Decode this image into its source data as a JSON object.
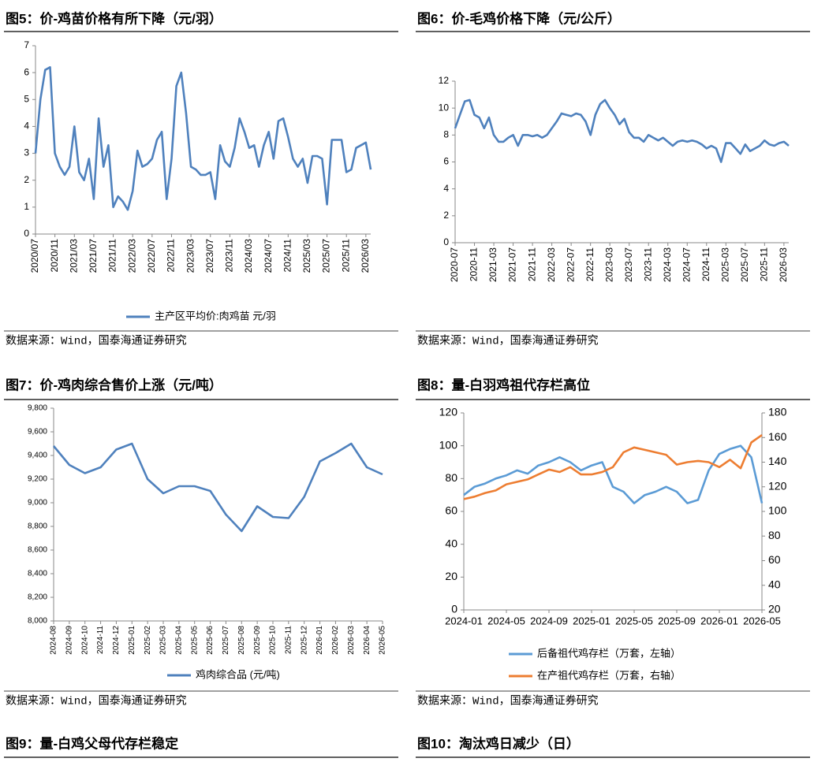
{
  "chart_data": [
    {
      "type": "line",
      "title": "图5：价-鸡苗价格有所下降（元/羽）",
      "source": "数据来源：Wind，国泰海通证券研究",
      "categories": [
        "2020/07",
        null,
        null,
        null,
        "2020/11",
        null,
        null,
        null,
        "2021/03",
        null,
        null,
        null,
        "2021/07",
        null,
        null,
        null,
        "2021/11",
        null,
        null,
        null,
        "2022/03",
        null,
        null,
        null,
        "2022/07",
        null,
        null,
        null,
        "2022/11",
        null,
        null,
        null,
        "2023/03",
        null,
        null,
        null,
        "2023/07",
        null,
        null,
        null,
        "2023/11",
        null,
        null,
        null,
        "2024/03",
        null,
        null,
        null,
        "2024/07",
        null,
        null,
        null,
        "2024/11",
        null,
        null,
        null,
        "2025/03",
        null,
        null,
        null,
        "2025/07",
        null,
        null,
        null,
        "2025/11",
        null,
        null,
        null,
        "2026/03",
        null
      ],
      "series": [
        {
          "name": "主产区平均价:肉鸡苗 元/羽",
          "color": "#4f81bd",
          "values": [
            3.0,
            5.0,
            6.1,
            6.2,
            3.0,
            2.5,
            2.2,
            2.5,
            4.0,
            2.3,
            2.0,
            2.8,
            1.3,
            4.3,
            2.5,
            3.3,
            1.0,
            1.4,
            1.2,
            0.9,
            1.6,
            3.1,
            2.5,
            2.6,
            2.8,
            3.5,
            3.8,
            1.3,
            2.8,
            5.5,
            6.0,
            4.5,
            2.5,
            2.4,
            2.2,
            2.2,
            2.3,
            1.3,
            3.3,
            2.7,
            2.5,
            3.2,
            4.3,
            3.8,
            3.2,
            3.3,
            2.5,
            3.3,
            3.8,
            2.8,
            4.2,
            4.3,
            3.6,
            2.8,
            2.5,
            2.8,
            1.9,
            2.9,
            2.9,
            2.8,
            1.1,
            3.5,
            3.5,
            3.5,
            2.3,
            2.4,
            3.2,
            3.3,
            3.4,
            2.4
          ]
        }
      ],
      "ylim": [
        0,
        7
      ],
      "yticks": [
        0,
        1,
        2,
        3,
        4,
        5,
        6,
        7
      ]
    },
    {
      "type": "line",
      "title": "图6：价-毛鸡价格下降（元/公斤）",
      "source": "数据来源：Wind，国泰海通证券研究",
      "categories": [
        "2020-07",
        null,
        null,
        null,
        "2020-11",
        null,
        null,
        null,
        "2021-03",
        null,
        null,
        null,
        "2021-07",
        null,
        null,
        null,
        "2021-11",
        null,
        null,
        null,
        "2022-03",
        null,
        null,
        null,
        "2022-07",
        null,
        null,
        null,
        "2022-11",
        null,
        null,
        null,
        "2023-03",
        null,
        null,
        null,
        "2023-07",
        null,
        null,
        null,
        "2023-11",
        null,
        null,
        null,
        "2024-03",
        null,
        null,
        null,
        "2024-07",
        null,
        null,
        null,
        "2024-11",
        null,
        null,
        null,
        "2025-03",
        null,
        null,
        null,
        "2025-07",
        null,
        null,
        null,
        "2025-11",
        null,
        null,
        null,
        "2026-03",
        null
      ],
      "color": "#4f81bd",
      "values": [
        8.5,
        9.5,
        10.5,
        10.6,
        9.5,
        9.3,
        8.5,
        9.3,
        8.0,
        7.5,
        7.5,
        7.8,
        8.0,
        7.2,
        8.0,
        8.0,
        7.9,
        8.0,
        7.8,
        8.0,
        8.5,
        9.0,
        9.6,
        9.5,
        9.4,
        9.6,
        9.5,
        9.0,
        8.0,
        9.5,
        10.3,
        10.6,
        10.0,
        9.5,
        8.8,
        9.2,
        8.2,
        7.8,
        7.8,
        7.5,
        8.0,
        7.8,
        7.6,
        7.8,
        7.5,
        7.2,
        7.5,
        7.6,
        7.5,
        7.6,
        7.5,
        7.3,
        7.0,
        7.2,
        7.0,
        6.0,
        7.4,
        7.4,
        7.0,
        6.6,
        7.3,
        6.8,
        7.0,
        7.2,
        7.6,
        7.3,
        7.2,
        7.4,
        7.5,
        7.2
      ],
      "ylim": [
        0,
        12
      ],
      "yticks": [
        0,
        2,
        4,
        6,
        8,
        10,
        12
      ]
    },
    {
      "type": "line",
      "title": "图7：价-鸡肉综合售价上涨（元/吨）",
      "source": "数据来源：Wind，国泰海通证券研究",
      "categories": [
        "2024-08",
        "2024-09",
        "2024-10",
        "2024-11",
        "2024-12",
        "2025-01",
        "2025-02",
        "2025-03",
        "2025-04",
        "2025-05",
        "2025-06",
        "2025-07",
        "2025-08",
        "2025-09",
        "2025-10",
        "2025-11",
        "2025-12",
        "2026-01",
        "2026-02",
        "2026-03",
        "2026-04",
        "2026-05"
      ],
      "series": [
        {
          "name": "鸡肉综合品 (元/吨)",
          "color": "#4f81bd",
          "values": [
            9480,
            9320,
            9250,
            9300,
            9450,
            9500,
            9200,
            9080,
            9140,
            9140,
            9100,
            8900,
            8760,
            8970,
            8880,
            8870,
            9050,
            9350,
            9420,
            9500,
            9300,
            9240
          ]
        }
      ],
      "ylim": [
        8000,
        9800
      ],
      "yticks": [
        {
          "value": 8000,
          "label": "8,000"
        },
        {
          "value": 8200,
          "label": "8,200"
        },
        {
          "value": 8400,
          "label": "8,400"
        },
        {
          "value": 8600,
          "label": "8,600"
        },
        {
          "value": 8800,
          "label": "8,800"
        },
        {
          "value": 9000,
          "label": "9,000"
        },
        {
          "value": 9200,
          "label": "9,200"
        },
        {
          "value": 9400,
          "label": "9,400"
        },
        {
          "value": 9600,
          "label": "9,600"
        },
        {
          "value": 9800,
          "label": "9,800"
        }
      ]
    },
    {
      "type": "line",
      "title": "图8：量-白羽鸡祖代存栏高位",
      "source": "数据来源：Wind，国泰海通证券研究",
      "categories": [
        "2024-01",
        null,
        null,
        null,
        "2024-05",
        null,
        null,
        null,
        "2024-09",
        null,
        null,
        null,
        "2025-01",
        null,
        null,
        null,
        "2025-05",
        null,
        null,
        null,
        "2025-09",
        null,
        null,
        null,
        "2026-01",
        null,
        null,
        null,
        "2026-05"
      ],
      "series": [
        {
          "name": "后备祖代鸡存栏（万套，左轴）",
          "color": "#5b9bd5",
          "values": [
            70,
            75,
            77,
            80,
            82,
            85,
            83,
            88,
            90,
            93,
            90,
            85,
            88,
            90,
            75,
            72,
            65,
            70,
            72,
            75,
            72,
            65,
            67,
            85,
            95,
            98,
            100,
            93,
            65
          ]
        },
        {
          "name": "在产祖代鸡存栏（万套，右轴）",
          "color": "#ed7d31",
          "axis": "y2",
          "values": [
            110,
            112,
            115,
            117,
            122,
            124,
            126,
            130,
            134,
            132,
            136,
            130,
            130,
            132,
            136,
            148,
            152,
            150,
            148,
            146,
            138,
            140,
            141,
            140,
            136,
            142,
            135,
            156,
            162
          ]
        }
      ],
      "ylim": [
        0,
        120
      ],
      "yticks": [
        0,
        20,
        40,
        60,
        80,
        100,
        120
      ],
      "y2lim": [
        20,
        180
      ],
      "y2ticks": [
        20,
        40,
        60,
        80,
        100,
        120,
        140,
        160,
        180
      ]
    }
  ],
  "more_titles": [
    "图9：量-白鸡父母代存栏稳定",
    "图10：淘汰鸡日减少（日）"
  ]
}
